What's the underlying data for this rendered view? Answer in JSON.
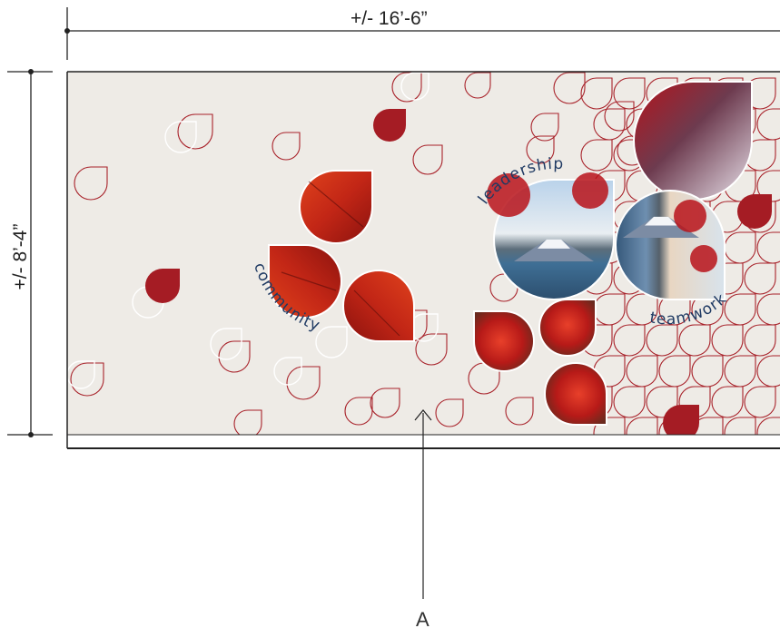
{
  "dimensions": {
    "width_label": "+/- 16’-6”",
    "height_label": "+/- 8’-4”"
  },
  "callout": {
    "label": "A"
  },
  "wall_words": {
    "left_cluster": "community",
    "right_top": "leadership",
    "right_bottom": "teamwork"
  },
  "colors": {
    "wall_background": "#eeebe6",
    "petal_red": "#a51c24",
    "outline_red": "#a8222a",
    "outline_white": "#ffffff",
    "text_navy": "#1f3a63",
    "line": "#222222"
  }
}
